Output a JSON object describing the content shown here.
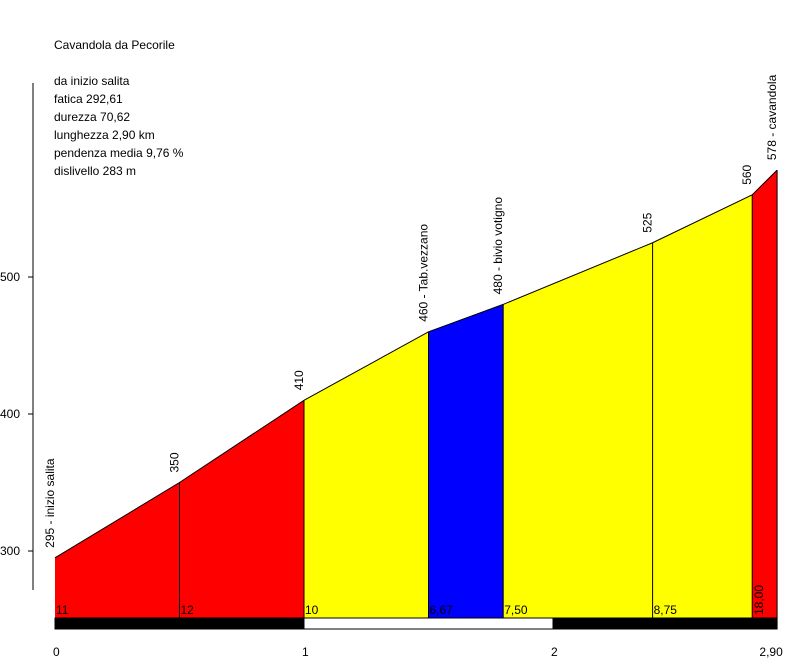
{
  "chart_data": {
    "type": "area",
    "title": "Cavandola da Pecorile",
    "info_heading": "da inizio salita",
    "info_lines": [
      "fatica 292,61",
      "durezza 70,62",
      "lunghezza 2,90 km",
      "pendenza media 9,76 %",
      "dislivello 283 m"
    ],
    "x_unit": "km",
    "y_unit": "m",
    "xlim": [
      0,
      2.9
    ],
    "ylim": [
      250,
      600
    ],
    "y_ticks": [
      300,
      400,
      500
    ],
    "x_tick_labels": [
      {
        "x": 0,
        "label": "0"
      },
      {
        "x": 1,
        "label": "1"
      },
      {
        "x": 2,
        "label": "2"
      },
      {
        "x": 2.9,
        "label": "2,90"
      }
    ],
    "points": [
      {
        "x": 0.0,
        "elevation": 295,
        "label": "295 - inizio salita"
      },
      {
        "x": 0.5,
        "elevation": 350,
        "label": "350"
      },
      {
        "x": 1.0,
        "elevation": 410,
        "label": "410"
      },
      {
        "x": 1.5,
        "elevation": 460,
        "label": "460 - Tab.vezzano"
      },
      {
        "x": 1.8,
        "elevation": 480,
        "label": "480 - bivio votigno"
      },
      {
        "x": 2.4,
        "elevation": 525,
        "label": "525"
      },
      {
        "x": 2.8,
        "elevation": 560,
        "label": "560"
      },
      {
        "x": 2.9,
        "elevation": 578,
        "label": "578 - cavandola"
      }
    ],
    "segments": [
      {
        "from": 0.0,
        "to": 0.5,
        "gradient": "11",
        "color": "#ff0000"
      },
      {
        "from": 0.5,
        "to": 1.0,
        "gradient": "12",
        "color": "#ff0000"
      },
      {
        "from": 1.0,
        "to": 1.5,
        "gradient": "10",
        "color": "#ffff00"
      },
      {
        "from": 1.5,
        "to": 1.8,
        "gradient": "6,67",
        "color": "#0000ff"
      },
      {
        "from": 1.8,
        "to": 2.4,
        "gradient": "7,50",
        "color": "#ffff00"
      },
      {
        "from": 2.4,
        "to": 2.8,
        "gradient": "8,75",
        "color": "#ffff00"
      },
      {
        "from": 2.8,
        "to": 2.9,
        "gradient": "18,00",
        "color": "#ff0000"
      }
    ],
    "km_bar": [
      {
        "from": 0,
        "to": 1,
        "color": "#000000"
      },
      {
        "from": 1,
        "to": 2,
        "color": "#ffffff"
      },
      {
        "from": 2,
        "to": 2.9,
        "color": "#000000"
      }
    ]
  }
}
